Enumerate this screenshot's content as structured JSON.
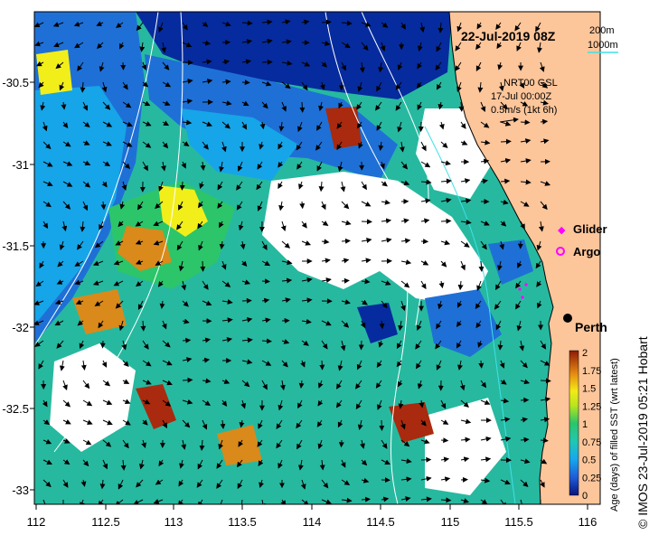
{
  "title": "22-Jul-2019 08Z",
  "contours": {
    "c200": "200m",
    "c1000": "1000m"
  },
  "current": {
    "source": "NRT00 GSL",
    "time": "17-Jul 00:00Z",
    "scale": "0.5m/s (1kt 6h)"
  },
  "legend": {
    "glider": "Glider",
    "argo": "Argo"
  },
  "city": "Perth",
  "colorbar": {
    "label": "Age (days) of filled SST (wrt latest)",
    "ticks": [
      "2",
      "1.75",
      "1.5",
      "1.25",
      "1",
      "0.75",
      "0.5",
      "0.25",
      "0"
    ]
  },
  "axes": {
    "x_ticks": [
      "112",
      "112.5",
      "113",
      "113.5",
      "114",
      "114.5",
      "115",
      "115.5",
      "116"
    ],
    "y_ticks": [
      "-30.5",
      "-31",
      "-31.5",
      "-32",
      "-32.5",
      "-33"
    ]
  },
  "copyright": "© IMOS 23-Jul-2019 05:21 Hobart",
  "colors": {
    "land": "#fcc59a",
    "deep": "#062b9e",
    "mid": "#1e70d6",
    "light": "#16a5e8",
    "teal": "#26b9a0",
    "green": "#2cc56a",
    "yellow": "#f2ee1a",
    "orange": "#d98a1a",
    "red": "#a92a0e"
  }
}
